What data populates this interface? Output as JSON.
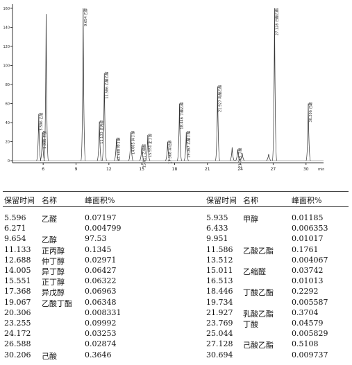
{
  "chromatogram": {
    "xlim": [
      3.2,
      31.6
    ],
    "ylim": [
      0,
      160
    ],
    "xticks": [
      6,
      9,
      12,
      15,
      18,
      21,
      24,
      27,
      30
    ],
    "yticks": [
      0,
      20,
      40,
      60,
      80,
      100,
      120,
      140,
      160
    ],
    "x_unit": "min",
    "peaks": [
      {
        "x": 5.596,
        "height": 49,
        "label": "5.596 乙醛"
      },
      {
        "x": 5.935,
        "height": 30,
        "label": "5.935 甲醇"
      },
      {
        "x": 6.271,
        "height": 154,
        "label": null
      },
      {
        "x": 9.654,
        "height": 160,
        "label": "9.654 乙醇"
      },
      {
        "x": 11.133,
        "height": 41,
        "label": "11.133 正丙醇"
      },
      {
        "x": 11.586,
        "height": 92,
        "label": "11.586 乙酸乙酯"
      },
      {
        "x": 12.688,
        "height": 23,
        "label": "12.688 仲丁醇"
      },
      {
        "x": 14.005,
        "height": 30,
        "label": "14.005 异丁醇"
      },
      {
        "x": 15.011,
        "height": 16,
        "label": "15.011 乙缩醛"
      },
      {
        "x": 15.551,
        "height": 27,
        "label": "15.551 正丁醇"
      },
      {
        "x": 17.368,
        "height": 20,
        "label": "17.368 异戊醇"
      },
      {
        "x": 18.446,
        "height": 60,
        "label": "18.446 丁酸乙酯"
      },
      {
        "x": 19.067,
        "height": 30,
        "label": "19.067 乙酸丁酯"
      },
      {
        "x": 21.927,
        "height": 78,
        "label": "21.927 乳酸乙酯"
      },
      {
        "x": 23.255,
        "height": 14,
        "label": null
      },
      {
        "x": 23.769,
        "height": 12,
        "label": "23.769 丁酸"
      },
      {
        "x": 24.172,
        "height": 8,
        "label": null
      },
      {
        "x": 26.588,
        "height": 7,
        "label": null
      },
      {
        "x": 27.128,
        "height": 160,
        "label": "27.128 己酸乙酯"
      },
      {
        "x": 30.206,
        "height": 60,
        "label": "30.206 己酸"
      }
    ]
  },
  "table": {
    "header": [
      "保留时间",
      "名称",
      "峰面积%"
    ],
    "left": [
      [
        "5.596",
        "乙醛",
        "0.07197"
      ],
      [
        "6.271",
        null,
        "0.004799"
      ],
      [
        "9.654",
        "乙醇",
        "97.53"
      ],
      [
        "11.133",
        "正丙醇",
        "0.1345"
      ],
      [
        "12.688",
        "仲丁醇",
        "0.02971"
      ],
      [
        "14.005",
        "异丁醇",
        "0.06427"
      ],
      [
        "15.551",
        "正丁醇",
        "0.06322"
      ],
      [
        "17.368",
        "异戊醇",
        "0.06963"
      ],
      [
        "19.067",
        "乙酸丁酯",
        "0.06348"
      ],
      [
        "20.306",
        null,
        "0.008331"
      ],
      [
        "23.255",
        null,
        "0.09992"
      ],
      [
        "24.172",
        null,
        "0.03253"
      ],
      [
        "26.588",
        null,
        "0.02874"
      ],
      [
        "30.206",
        "己酸",
        "0.3646"
      ]
    ],
    "right": [
      [
        "5.935",
        "甲醇",
        "0.01185"
      ],
      [
        "6.433",
        null,
        "0.006353"
      ],
      [
        "9.951",
        null,
        "0.01017"
      ],
      [
        "11.586",
        "乙酸乙酯",
        "0.1761"
      ],
      [
        "13.512",
        null,
        "0.004067"
      ],
      [
        "15.011",
        "乙缩醛",
        "0.03742"
      ],
      [
        "16.513",
        null,
        "0.01013"
      ],
      [
        "18.446",
        "丁酸乙酯",
        "0.2292"
      ],
      [
        "19.734",
        null,
        "0.005587"
      ],
      [
        "21.927",
        "乳酸乙酯",
        "0.3704"
      ],
      [
        "23.769",
        "丁酸",
        "0.04579"
      ],
      [
        "25.044",
        null,
        "0.005829"
      ],
      [
        "27.128",
        "己酸乙酯",
        "0.5108"
      ],
      [
        "30.694",
        null,
        "0.009737"
      ]
    ]
  }
}
